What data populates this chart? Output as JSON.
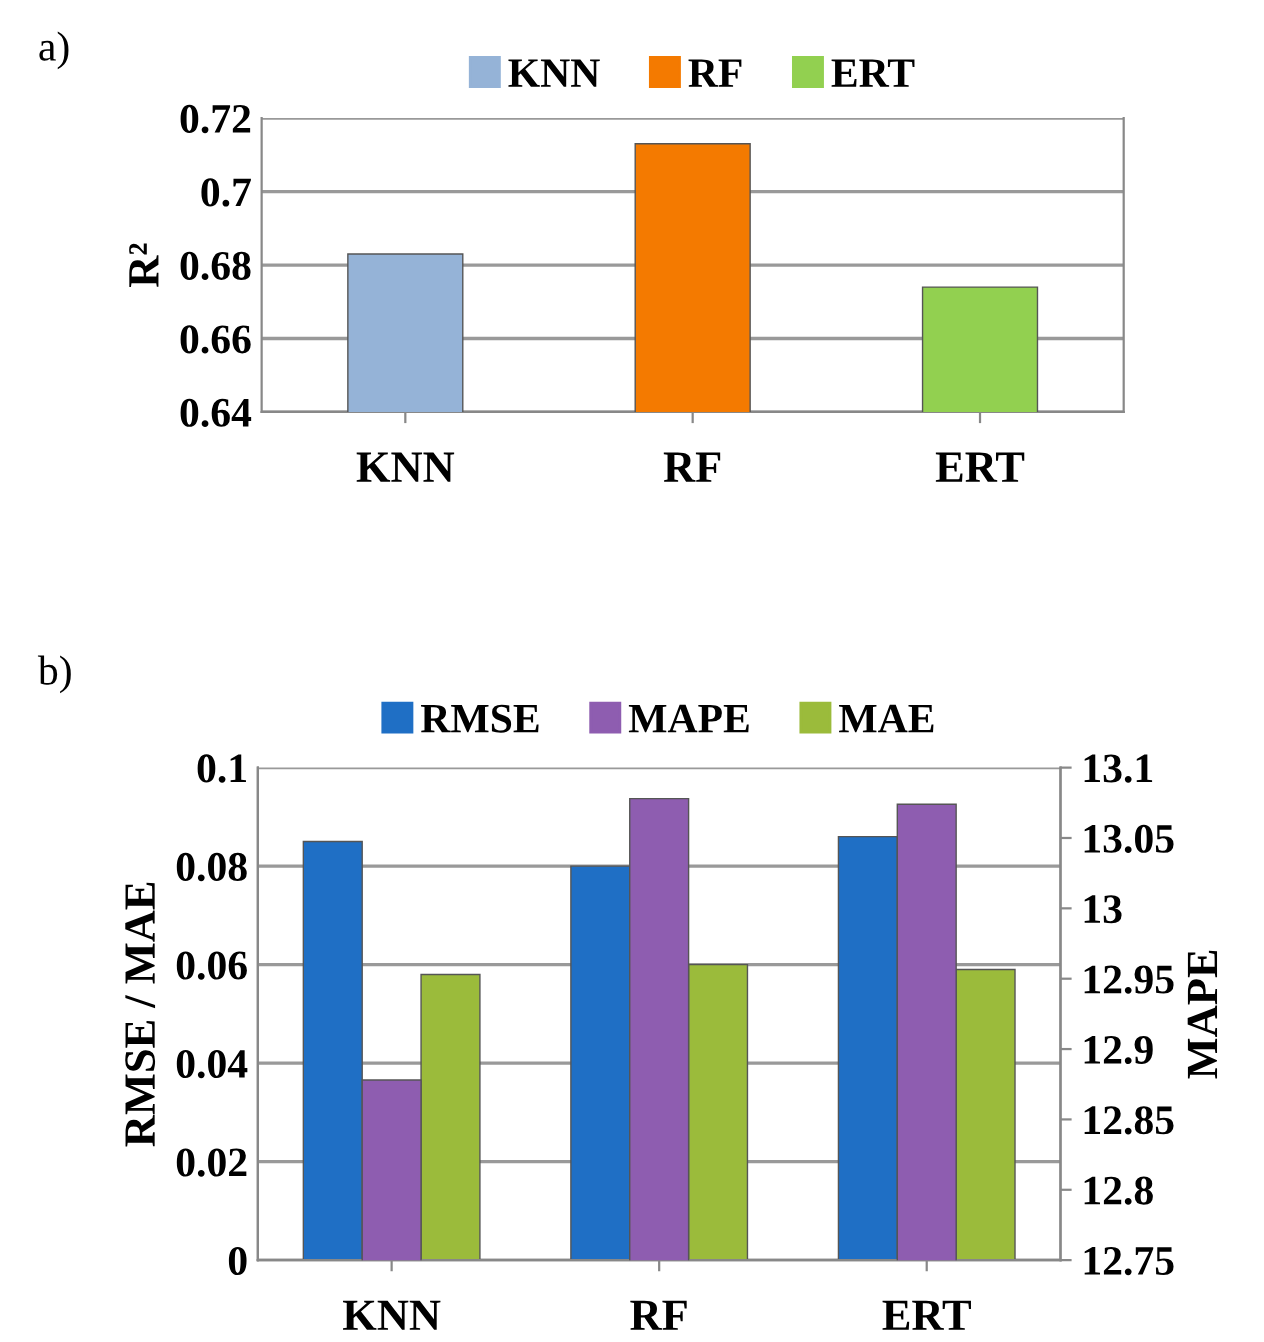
{
  "chart_data": [
    {
      "type": "bar",
      "ylabel": "R²",
      "annotations": [
        "a)"
      ],
      "categories": [
        "KNN",
        "RF",
        "ERT"
      ],
      "stacked": true,
      "series": [
        {
          "name": "KNN",
          "color": "#95b3d7",
          "values": [
            0.683,
            null,
            null
          ]
        },
        {
          "name": "RF",
          "color": "#f47a00",
          "values": [
            null,
            0.713,
            null
          ]
        },
        {
          "name": "ERT",
          "color": "#92d050",
          "values": [
            null,
            null,
            0.674
          ]
        }
      ],
      "ylim": [
        0.64,
        0.72
      ],
      "yticks": [
        0.64,
        0.66,
        0.68,
        0.7,
        0.72
      ],
      "grid": "y",
      "legend": "top"
    },
    {
      "type": "bar",
      "ylabel": "RMSE / MAE",
      "y2label": "MAPE",
      "annotations": [
        "b)"
      ],
      "categories": [
        "KNN",
        "RF",
        "ERT"
      ],
      "series": [
        {
          "name": "RMSE",
          "color": "#1f6fc5",
          "values": [
            0.085,
            0.08,
            0.086
          ]
        },
        {
          "name": "MAPE",
          "color": "#8e5db0",
          "values": [
            12.878,
            13.078,
            13.074
          ],
          "axis": "y2"
        },
        {
          "name": "MAE",
          "color": "#9bbb3b",
          "values": [
            0.058,
            0.06,
            0.059
          ]
        }
      ],
      "ylim": [
        0,
        0.1
      ],
      "yticks": [
        0,
        0.02,
        0.04,
        0.06,
        0.08,
        0.1
      ],
      "y2lim": [
        12.75,
        13.1
      ],
      "y2ticks": [
        12.75,
        12.8,
        12.85,
        12.9,
        12.95,
        13,
        13.05,
        13.1
      ],
      "grid": "y",
      "legend": "top"
    }
  ]
}
